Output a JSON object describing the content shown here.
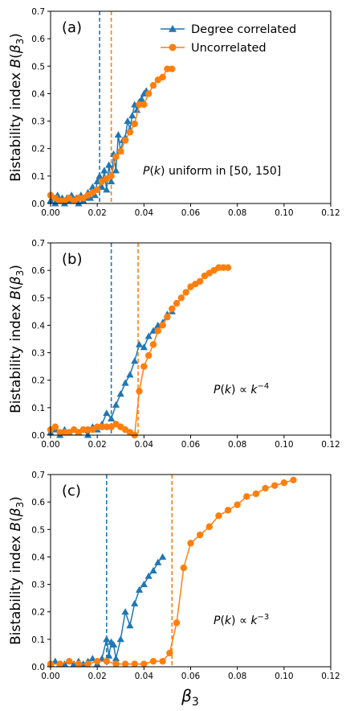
{
  "colors": {
    "correlated": "#1f77b4",
    "uncorrelated": "#ff7f0e"
  },
  "figure": {
    "xlabel_base": "β",
    "xlabel_sub": "3"
  },
  "chart_data": [
    {
      "type": "line",
      "panel": "(a)",
      "ylabel": "Bistability index B(β3)",
      "annotation": "P(k) uniform in [50, 150]",
      "xlim": [
        0,
        0.12
      ],
      "ylim": [
        0,
        0.7
      ],
      "xticks": [
        "0.00",
        "0.02",
        "0.04",
        "0.06",
        "0.08",
        "0.10",
        "0.12"
      ],
      "yticks": [
        "0.0",
        "0.1",
        "0.2",
        "0.3",
        "0.4",
        "0.5",
        "0.6",
        "0.7"
      ],
      "legend": {
        "position": "top-right",
        "entries": [
          "Degree correlated",
          "Uncorrelated"
        ]
      },
      "vlines": [
        {
          "x": 0.021,
          "color": "#1f77b4",
          "style": "dashed"
        },
        {
          "x": 0.026,
          "color": "#ff7f0e",
          "style": "dashed"
        }
      ],
      "series": [
        {
          "name": "Degree correlated",
          "marker": "triangle",
          "color": "#1f77b4",
          "x": [
            0.0,
            0.001,
            0.002,
            0.003,
            0.004,
            0.005,
            0.006,
            0.007,
            0.008,
            0.009,
            0.01,
            0.011,
            0.012,
            0.013,
            0.014,
            0.015,
            0.016,
            0.017,
            0.018,
            0.019,
            0.02,
            0.021,
            0.022,
            0.023,
            0.024,
            0.025,
            0.026,
            0.027,
            0.028,
            0.029,
            0.03,
            0.031,
            0.032,
            0.033,
            0.034,
            0.035,
            0.036,
            0.037,
            0.038,
            0.039,
            0.04,
            0.041
          ],
          "values": [
            0.01,
            0.02,
            0.0,
            0.03,
            0.01,
            0.02,
            0.0,
            0.02,
            0.01,
            0.03,
            0.01,
            0.02,
            0.0,
            0.03,
            0.01,
            0.02,
            0.04,
            0.02,
            0.06,
            0.03,
            0.08,
            0.1,
            0.06,
            0.12,
            0.05,
            0.14,
            0.08,
            0.18,
            0.12,
            0.25,
            0.19,
            0.23,
            0.24,
            0.3,
            0.27,
            0.32,
            0.36,
            0.34,
            0.37,
            0.38,
            0.4,
            0.41
          ]
        },
        {
          "name": "Uncorrelated",
          "marker": "circle",
          "color": "#ff7f0e",
          "x": [
            0.0,
            0.002,
            0.004,
            0.006,
            0.008,
            0.01,
            0.012,
            0.014,
            0.016,
            0.018,
            0.02,
            0.022,
            0.024,
            0.026,
            0.028,
            0.03,
            0.032,
            0.034,
            0.036,
            0.038,
            0.04,
            0.042,
            0.044,
            0.046,
            0.048,
            0.05,
            0.052
          ],
          "values": [
            0.03,
            0.02,
            0.01,
            0.01,
            0.02,
            0.01,
            0.02,
            0.02,
            0.03,
            0.04,
            0.05,
            0.08,
            0.09,
            0.1,
            0.17,
            0.19,
            0.23,
            0.26,
            0.29,
            0.36,
            0.36,
            0.4,
            0.43,
            0.45,
            0.46,
            0.49,
            0.49
          ]
        }
      ]
    },
    {
      "type": "line",
      "panel": "(b)",
      "ylabel": "Bistability index B(β3)",
      "annotation": "P(k) ∝ k^-4",
      "xlim": [
        0,
        0.12
      ],
      "ylim": [
        0,
        0.7
      ],
      "xticks": [
        "0.00",
        "0.02",
        "0.04",
        "0.06",
        "0.08",
        "0.10",
        "0.12"
      ],
      "yticks": [
        "0.0",
        "0.1",
        "0.2",
        "0.3",
        "0.4",
        "0.5",
        "0.6",
        "0.7"
      ],
      "vlines": [
        {
          "x": 0.026,
          "color": "#1f77b4",
          "style": "dashed"
        },
        {
          "x": 0.0375,
          "color": "#ff7f0e",
          "style": "dashed"
        }
      ],
      "series": [
        {
          "name": "Degree correlated",
          "marker": "triangle",
          "color": "#1f77b4",
          "x": [
            0.0,
            0.002,
            0.004,
            0.006,
            0.008,
            0.01,
            0.012,
            0.014,
            0.016,
            0.018,
            0.02,
            0.022,
            0.024,
            0.026,
            0.028,
            0.03,
            0.032,
            0.034,
            0.036,
            0.038,
            0.04,
            0.042,
            0.044,
            0.046,
            0.048,
            0.05,
            0.052
          ],
          "values": [
            0.01,
            0.02,
            0.0,
            0.02,
            0.01,
            0.02,
            0.01,
            0.02,
            0.0,
            0.03,
            0.02,
            0.04,
            0.08,
            0.06,
            0.11,
            0.15,
            0.19,
            0.22,
            0.27,
            0.33,
            0.32,
            0.36,
            0.38,
            0.4,
            0.41,
            0.44,
            0.45
          ]
        },
        {
          "name": "Uncorrelated",
          "marker": "circle",
          "color": "#ff7f0e",
          "x": [
            0.0,
            0.002,
            0.004,
            0.006,
            0.008,
            0.01,
            0.012,
            0.014,
            0.016,
            0.018,
            0.02,
            0.022,
            0.024,
            0.026,
            0.028,
            0.03,
            0.032,
            0.034,
            0.036,
            0.038,
            0.04,
            0.042,
            0.044,
            0.046,
            0.048,
            0.05,
            0.052,
            0.054,
            0.056,
            0.058,
            0.06,
            0.062,
            0.064,
            0.066,
            0.068,
            0.07,
            0.072,
            0.074,
            0.076
          ],
          "values": [
            0.02,
            0.03,
            0.01,
            0.01,
            0.01,
            0.02,
            0.01,
            0.02,
            0.02,
            0.02,
            0.03,
            0.03,
            0.03,
            0.03,
            0.04,
            0.03,
            0.02,
            0.01,
            0.0,
            0.16,
            0.25,
            0.29,
            0.33,
            0.38,
            0.4,
            0.43,
            0.46,
            0.48,
            0.5,
            0.52,
            0.54,
            0.55,
            0.56,
            0.58,
            0.59,
            0.6,
            0.61,
            0.61,
            0.61
          ]
        }
      ]
    },
    {
      "type": "line",
      "panel": "(c)",
      "ylabel": "Bistability index B(β3)",
      "annotation": "P(k) ∝ k^-3",
      "xlim": [
        0,
        0.12
      ],
      "ylim": [
        0,
        0.7
      ],
      "xticks": [
        "0.00",
        "0.02",
        "0.04",
        "0.06",
        "0.08",
        "0.10",
        "0.12"
      ],
      "yticks": [
        "0.0",
        "0.1",
        "0.2",
        "0.3",
        "0.4",
        "0.5",
        "0.6",
        "0.7"
      ],
      "vlines": [
        {
          "x": 0.024,
          "color": "#1f77b4",
          "style": "dashed"
        },
        {
          "x": 0.052,
          "color": "#ff7f0e",
          "style": "dashed"
        }
      ],
      "series": [
        {
          "name": "Degree correlated",
          "marker": "triangle",
          "color": "#1f77b4",
          "x": [
            0.0,
            0.002,
            0.004,
            0.006,
            0.008,
            0.01,
            0.012,
            0.014,
            0.016,
            0.018,
            0.02,
            0.022,
            0.024,
            0.025,
            0.026,
            0.027,
            0.028,
            0.03,
            0.032,
            0.034,
            0.036,
            0.038,
            0.04,
            0.042,
            0.044,
            0.046,
            0.048
          ],
          "values": [
            0.01,
            0.02,
            0.01,
            0.01,
            0.02,
            0.01,
            0.02,
            0.01,
            0.02,
            0.03,
            0.01,
            0.03,
            0.1,
            0.04,
            0.09,
            0.08,
            0.03,
            0.1,
            0.2,
            0.15,
            0.23,
            0.28,
            0.3,
            0.33,
            0.35,
            0.38,
            0.4
          ]
        },
        {
          "name": "Uncorrelated",
          "marker": "circle",
          "color": "#ff7f0e",
          "x": [
            0.0,
            0.004,
            0.008,
            0.012,
            0.016,
            0.02,
            0.024,
            0.028,
            0.032,
            0.036,
            0.04,
            0.044,
            0.048,
            0.051,
            0.054,
            0.057,
            0.06,
            0.064,
            0.068,
            0.072,
            0.076,
            0.08,
            0.084,
            0.088,
            0.092,
            0.096,
            0.1,
            0.104
          ],
          "values": [
            0.01,
            0.01,
            0.02,
            0.01,
            0.01,
            0.02,
            0.02,
            0.01,
            0.01,
            0.01,
            0.01,
            0.02,
            0.02,
            0.05,
            0.16,
            0.36,
            0.45,
            0.48,
            0.51,
            0.55,
            0.57,
            0.59,
            0.62,
            0.63,
            0.65,
            0.66,
            0.67,
            0.68
          ]
        }
      ]
    }
  ]
}
